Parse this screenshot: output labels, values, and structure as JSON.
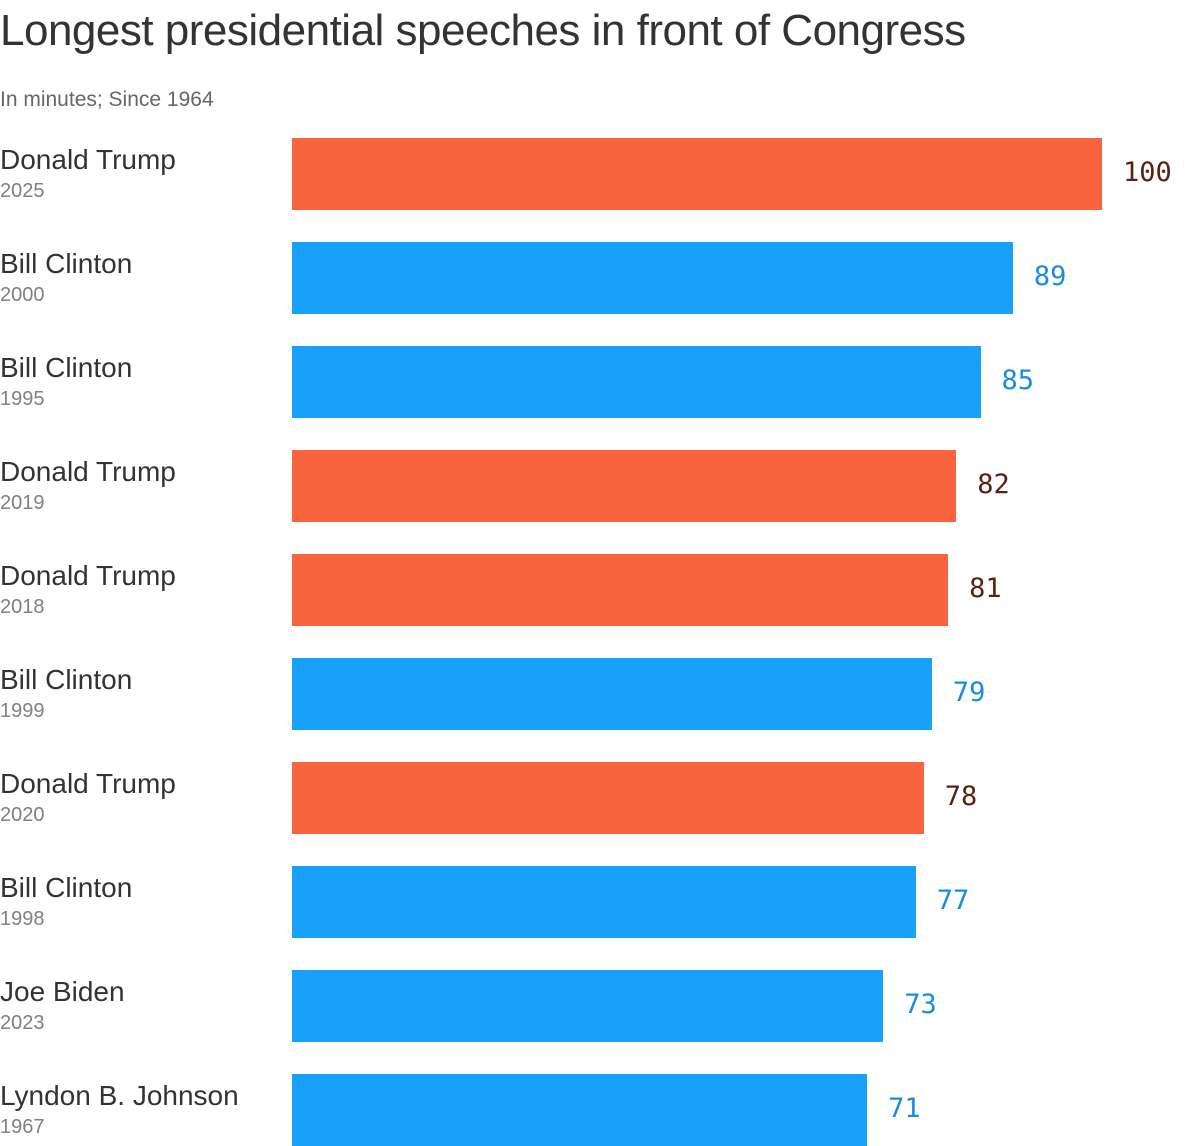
{
  "chart_data": {
    "type": "bar",
    "orientation": "horizontal",
    "title": "Longest presidential speeches in front of Congress",
    "subtitle": "In minutes; Since 1964",
    "xlabel": "",
    "ylabel": "",
    "xlim": [
      0,
      100
    ],
    "grid": false,
    "legend": "none",
    "colors": {
      "republican_bar": "#F7643E",
      "democrat_bar": "#18A0FB",
      "republican_label": "#5C1F0F",
      "democrat_label": "#1A8CE0"
    },
    "rows": [
      {
        "president": "Donald Trump",
        "year": "2025",
        "value": 100,
        "party": "republican"
      },
      {
        "president": "Bill Clinton",
        "year": "2000",
        "value": 89,
        "party": "democrat"
      },
      {
        "president": "Bill Clinton",
        "year": "1995",
        "value": 85,
        "party": "democrat"
      },
      {
        "president": "Donald Trump",
        "year": "2019",
        "value": 82,
        "party": "republican"
      },
      {
        "president": "Donald Trump",
        "year": "2018",
        "value": 81,
        "party": "republican"
      },
      {
        "president": "Bill Clinton",
        "year": "1999",
        "value": 79,
        "party": "democrat"
      },
      {
        "president": "Donald Trump",
        "year": "2020",
        "value": 78,
        "party": "republican"
      },
      {
        "president": "Bill Clinton",
        "year": "1998",
        "value": 77,
        "party": "democrat"
      },
      {
        "president": "Joe Biden",
        "year": "2023",
        "value": 73,
        "party": "democrat"
      },
      {
        "president": "Lyndon B. Johnson",
        "year": "1967",
        "value": 71,
        "party": "democrat"
      }
    ]
  }
}
